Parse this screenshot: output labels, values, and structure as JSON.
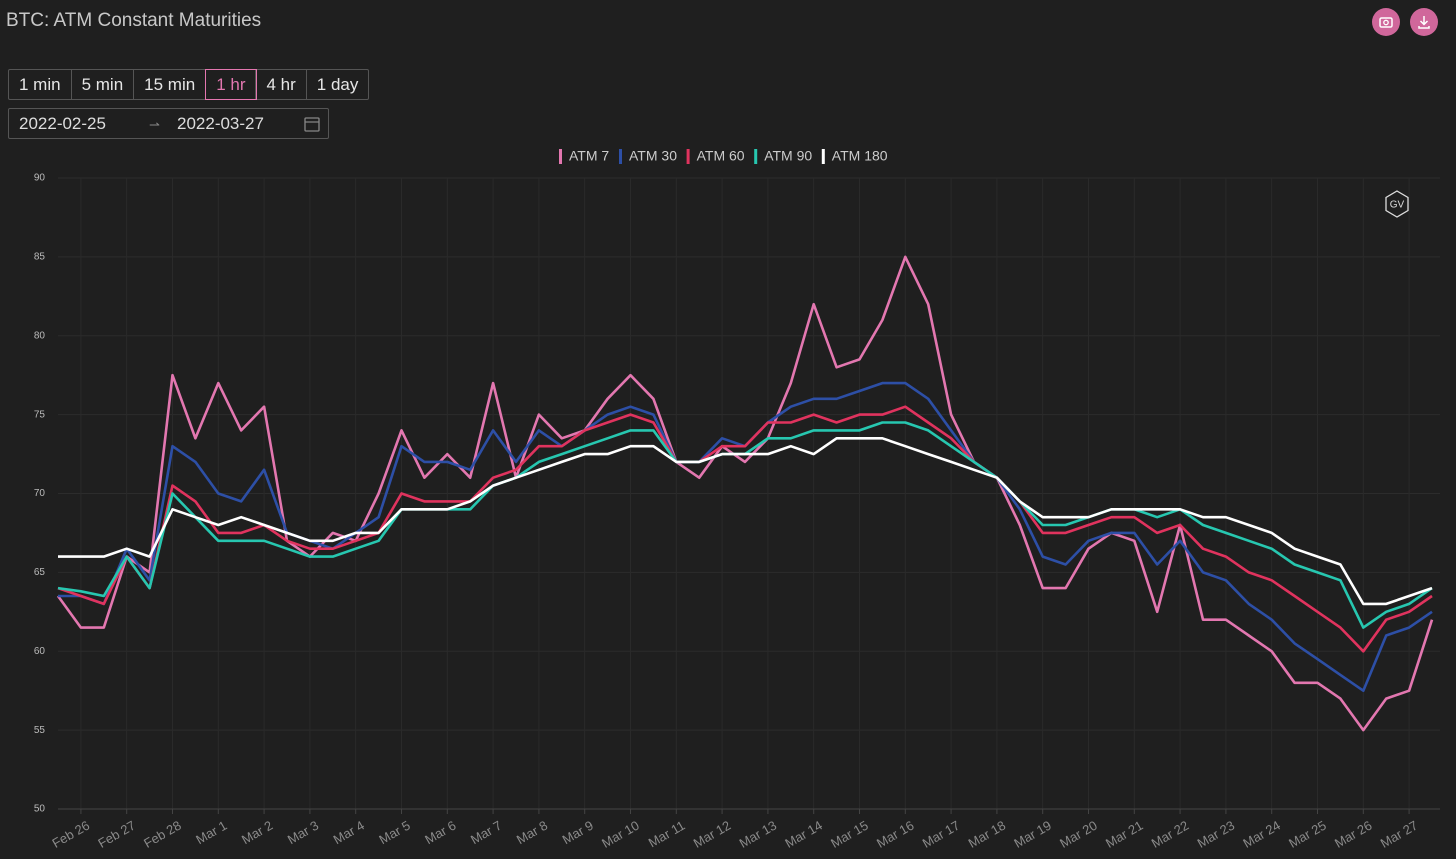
{
  "ui": {
    "title": "BTC: ATM Constant Maturities",
    "intervals": [
      {
        "label": "1 min",
        "selected": false
      },
      {
        "label": "5 min",
        "selected": false
      },
      {
        "label": "15 min",
        "selected": false
      },
      {
        "label": "1 hr",
        "selected": true
      },
      {
        "label": "4 hr",
        "selected": false
      },
      {
        "label": "1 day",
        "selected": false
      }
    ],
    "date_from": "2022-02-25",
    "date_to": "2022-03-27",
    "logo": "GV"
  },
  "chart_data": {
    "type": "line",
    "categories": [
      null,
      "Feb 26",
      null,
      "Feb 27",
      null,
      "Feb 28",
      null,
      "Mar 1",
      null,
      "Mar 2",
      null,
      "Mar 3",
      null,
      "Mar 4",
      null,
      "Mar 5",
      null,
      "Mar 6",
      null,
      "Mar 7",
      null,
      "Mar 8",
      null,
      "Mar 9",
      null,
      "Mar 10",
      null,
      "Mar 11",
      null,
      "Mar 12",
      null,
      "Mar 13",
      null,
      "Mar 14",
      null,
      "Mar 15",
      null,
      "Mar 16",
      null,
      "Mar 17",
      null,
      "Mar 18",
      null,
      "Mar 19",
      null,
      "Mar 20",
      null,
      "Mar 21",
      null,
      "Mar 22",
      null,
      "Mar 23",
      null,
      "Mar 24",
      null,
      "Mar 25",
      null,
      "Mar 26",
      null,
      "Mar 27",
      null
    ],
    "series": [
      {
        "name": "ATM 7",
        "color": "#e377b0",
        "values": [
          63.5,
          61.5,
          61.5,
          66,
          65,
          77.5,
          73.5,
          77,
          74,
          75.5,
          67,
          66,
          67.5,
          67,
          70,
          74,
          71,
          72.5,
          71,
          77,
          71,
          75,
          73.5,
          74,
          76,
          77.5,
          76,
          72,
          71,
          73,
          72,
          73.5,
          77,
          82,
          78,
          78.5,
          81,
          85,
          82,
          75,
          72,
          71,
          68,
          64,
          64,
          66.5,
          67.5,
          67,
          62.5,
          68,
          62,
          62,
          61,
          60,
          58,
          58,
          57,
          55,
          57,
          57.5,
          62
        ]
      },
      {
        "name": "ATM 30",
        "color": "#2d4fa6",
        "values": [
          63.5,
          63.5,
          63,
          66.5,
          64.5,
          73,
          72,
          70,
          69.5,
          71.5,
          67.5,
          67,
          66.5,
          67.5,
          68.5,
          73,
          72,
          72,
          71.5,
          74,
          72,
          74,
          73,
          74,
          75,
          75.5,
          75,
          72,
          72,
          73.5,
          73,
          74.5,
          75.5,
          76,
          76,
          76.5,
          77,
          77,
          76,
          74,
          72,
          71,
          69,
          66,
          65.5,
          67,
          67.5,
          67.5,
          65.5,
          67,
          65,
          64.5,
          63,
          62,
          60.5,
          59.5,
          58.5,
          57.5,
          61,
          61.5,
          62.5
        ]
      },
      {
        "name": "ATM 60",
        "color": "#e0335e",
        "values": [
          64,
          63.5,
          63,
          66,
          64,
          70.5,
          69.5,
          67.5,
          67.5,
          68,
          67,
          66.5,
          66.5,
          67,
          67.5,
          70,
          69.5,
          69.5,
          69.5,
          71,
          71.5,
          73,
          73,
          74,
          74.5,
          75,
          74.5,
          72,
          72,
          73,
          73,
          74.5,
          74.5,
          75,
          74.5,
          75,
          75,
          75.5,
          74.5,
          73.5,
          72,
          71,
          69.5,
          67.5,
          67.5,
          68,
          68.5,
          68.5,
          67.5,
          68,
          66.5,
          66,
          65,
          64.5,
          63.5,
          62.5,
          61.5,
          60,
          62,
          62.5,
          63.5
        ]
      },
      {
        "name": "ATM 90",
        "color": "#27c7b0",
        "values": [
          64,
          63.8,
          63.5,
          66,
          64,
          70,
          68.5,
          67,
          67,
          67,
          66.5,
          66,
          66,
          66.5,
          67,
          69,
          69,
          69,
          69,
          70.5,
          71,
          72,
          72.5,
          73,
          73.5,
          74,
          74,
          72,
          72,
          72.5,
          72.5,
          73.5,
          73.5,
          74,
          74,
          74,
          74.5,
          74.5,
          74,
          73,
          72,
          71,
          69.5,
          68,
          68,
          68.5,
          69,
          69,
          68.5,
          69,
          68,
          67.5,
          67,
          66.5,
          65.5,
          65,
          64.5,
          61.5,
          62.5,
          63,
          64
        ]
      },
      {
        "name": "ATM 180",
        "color": "#ffffff",
        "values": [
          66,
          66,
          66,
          66.5,
          66,
          69,
          68.5,
          68,
          68.5,
          68,
          67.5,
          67,
          67,
          67.5,
          67.5,
          69,
          69,
          69,
          69.5,
          70.5,
          71,
          71.5,
          72,
          72.5,
          72.5,
          73,
          73,
          72,
          72,
          72.5,
          72.5,
          72.5,
          73,
          72.5,
          73.5,
          73.5,
          73.5,
          73,
          72.5,
          72,
          71.5,
          71,
          69.5,
          68.5,
          68.5,
          68.5,
          69,
          69,
          69,
          69,
          68.5,
          68.5,
          68,
          67.5,
          66.5,
          66,
          65.5,
          63,
          63,
          63.5,
          64
        ]
      }
    ],
    "ylim": [
      50,
      90
    ],
    "yticks": [
      50,
      55,
      60,
      65,
      70,
      75,
      80,
      85,
      90
    ],
    "grid": true,
    "legend": "top"
  }
}
